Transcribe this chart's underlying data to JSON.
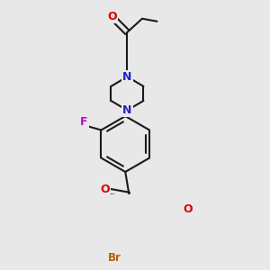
{
  "bg_color": "#e8e8e8",
  "bond_color": "#1a1a1a",
  "bond_width": 1.5,
  "atom_colors": {
    "O": "#dd0000",
    "N": "#2222cc",
    "F": "#cc00cc",
    "Br": "#b36200",
    "C": "#1a1a1a"
  },
  "font_size": 9.0,
  "fig_size": [
    3.0,
    3.0
  ],
  "dpi": 100,
  "xlim": [
    -1.4,
    1.8
  ],
  "ylim": [
    -3.2,
    1.8
  ]
}
